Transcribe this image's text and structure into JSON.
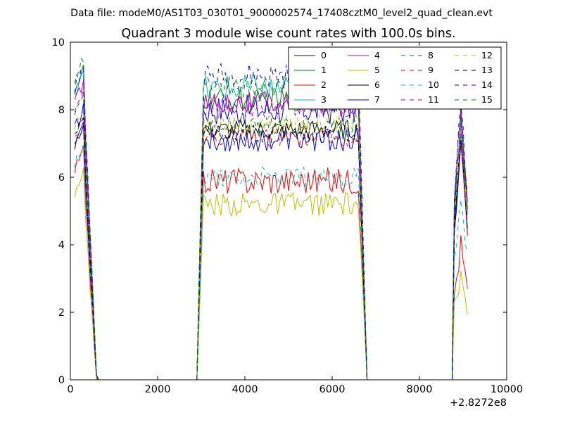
{
  "figure": {
    "suptitle": "Data file: modeM0/AS1T03_030T01_9000002574_17408cztM0_level2_quad_clean.evt"
  },
  "chart_data": {
    "type": "line",
    "title": "Quadrant 3 module wise count rates with 100.0s bins.",
    "xlabel": "",
    "ylabel": "",
    "x_offset_label": "+2.8272e8",
    "xlim": [
      0,
      10000
    ],
    "ylim": [
      0,
      10
    ],
    "xticks": [
      "0",
      "2000",
      "4000",
      "6000",
      "8000",
      "10000"
    ],
    "yticks": [
      "0",
      "2",
      "4",
      "6",
      "8",
      "10"
    ],
    "grid": false,
    "legend_position": "top-right",
    "series": [
      {
        "name": "0",
        "color": "#0000ff",
        "dash": "solid",
        "levels": [
          7.4,
          8.0,
          7.4
        ],
        "amp": 0.45
      },
      {
        "name": "1",
        "color": "#008000",
        "dash": "solid",
        "levels": [
          8.6,
          8.3,
          7.9
        ],
        "amp": 0.35
      },
      {
        "name": "2",
        "color": "#ff0000",
        "dash": "solid",
        "levels": [
          6.2,
          5.9,
          4.0
        ],
        "amp": 0.4
      },
      {
        "name": "3",
        "color": "#00bfbf",
        "dash": "solid",
        "levels": [
          8.4,
          8.6,
          7.6
        ],
        "amp": 0.45
      },
      {
        "name": "4",
        "color": "#bf00bf",
        "dash": "solid",
        "levels": [
          8.2,
          8.2,
          7.8
        ],
        "amp": 0.35
      },
      {
        "name": "5",
        "color": "#bfbf00",
        "dash": "solid",
        "levels": [
          5.6,
          5.2,
          3.1
        ],
        "amp": 0.35
      },
      {
        "name": "6",
        "color": "#000000",
        "dash": "solid",
        "levels": [
          6.9,
          7.4,
          7.1
        ],
        "amp": 0.3
      },
      {
        "name": "7",
        "color": "#0000ff",
        "dash": "solid",
        "levels": [
          7.0,
          7.1,
          7.0
        ],
        "amp": 0.35
      },
      {
        "name": "8",
        "color": "#008000",
        "dash": "dashed",
        "levels": [
          7.8,
          7.5,
          7.3
        ],
        "amp": 0.3
      },
      {
        "name": "9",
        "color": "#ff0000",
        "dash": "dashed",
        "levels": [
          7.1,
          7.2,
          7.0
        ],
        "amp": 0.3
      },
      {
        "name": "10",
        "color": "#00bfbf",
        "dash": "dashed",
        "levels": [
          6.4,
          6.0,
          5.4
        ],
        "amp": 0.3
      },
      {
        "name": "11",
        "color": "#bf00bf",
        "dash": "dashed",
        "levels": [
          8.0,
          8.1,
          7.7
        ],
        "amp": 0.35
      },
      {
        "name": "12",
        "color": "#bfbf00",
        "dash": "dashed",
        "levels": [
          7.4,
          7.6,
          7.3
        ],
        "amp": 0.3
      },
      {
        "name": "13",
        "color": "#000000",
        "dash": "dashed",
        "levels": [
          7.2,
          7.3,
          7.2
        ],
        "amp": 0.3
      },
      {
        "name": "14",
        "color": "#0000ff",
        "dash": "dashed",
        "levels": [
          8.7,
          9.0,
          8.4
        ],
        "amp": 0.4
      },
      {
        "name": "15",
        "color": "#008000",
        "dash": "dashed",
        "levels": [
          8.9,
          8.6,
          8.1
        ],
        "amp": 0.4
      }
    ],
    "segments": [
      {
        "x_start": 100,
        "x_end": 600
      },
      {
        "x_start": 2900,
        "x_end": 6800
      },
      {
        "x_start": 8800,
        "x_end": 9100
      }
    ]
  }
}
